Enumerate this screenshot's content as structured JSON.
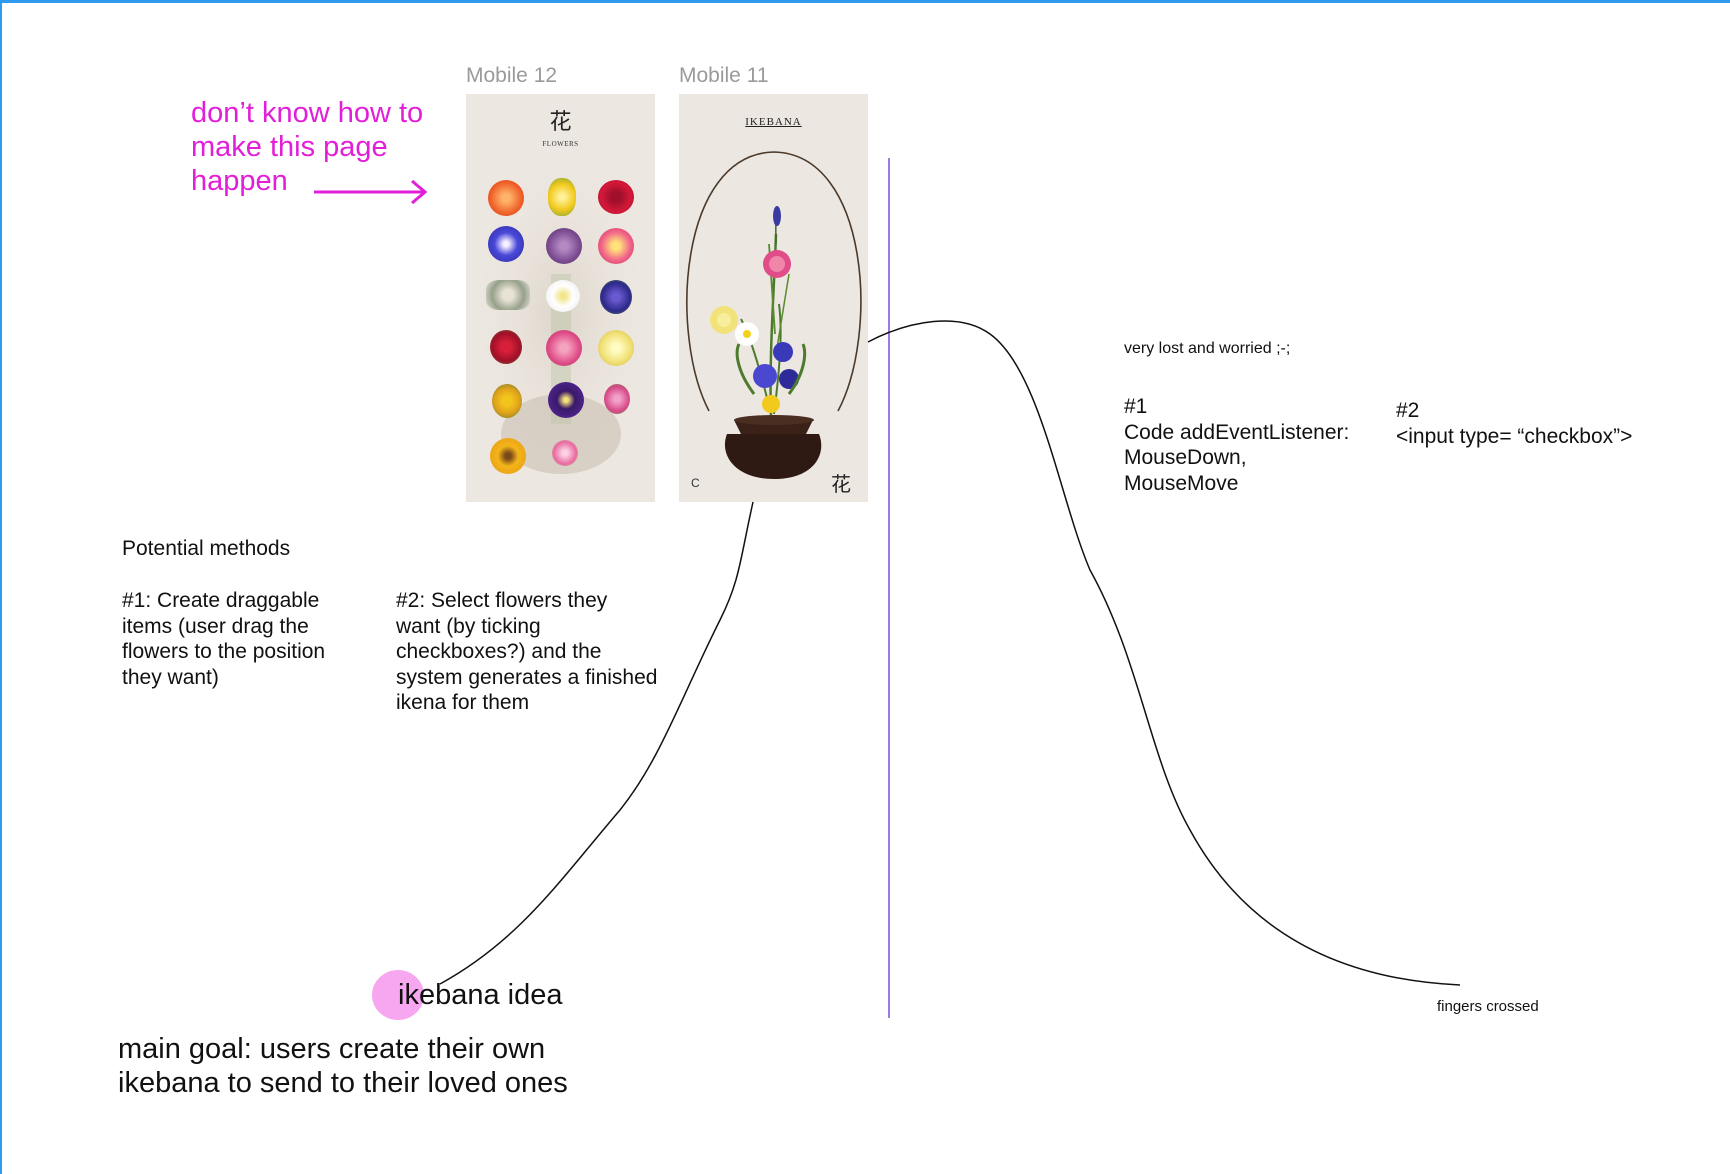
{
  "canvas": {
    "frame_labels": {
      "mobile12": "Mobile 12",
      "mobile11": "Mobile 11"
    },
    "mobile12": {
      "kanji": "花",
      "subtitle": "FLOWERS"
    },
    "mobile11": {
      "title": "IKEBANA",
      "corner_left": "C",
      "corner_right": "花"
    }
  },
  "notes": {
    "dont_know": "don’t know how to\nmake this page\nhappen",
    "potential_methods": "Potential methods",
    "method1": "#1:  Create draggable\nitems (user drag the\nflowers to the position\nthey want)",
    "method2": "#2:  Select flowers they\nwant (by ticking\ncheckboxes?) and the\nsystem generates a finished\nikena for them",
    "very_lost": "very lost and worried ;-;",
    "code1": "#1\nCode addEventListener:\nMouseDown,\nMouseMove",
    "code2": "#2\n<input type= “checkbox”>",
    "fingers_crossed": "fingers crossed",
    "ikebana_idea": "ikebana idea",
    "main_goal": "main goal: users create their own\nikebana to send to their loved ones"
  },
  "colors": {
    "magenta": "#e21fd8",
    "accent_blue": "#2e9bf0",
    "divider_purple": "#7a4fe0",
    "highlight_pink": "#f7a6f0"
  }
}
